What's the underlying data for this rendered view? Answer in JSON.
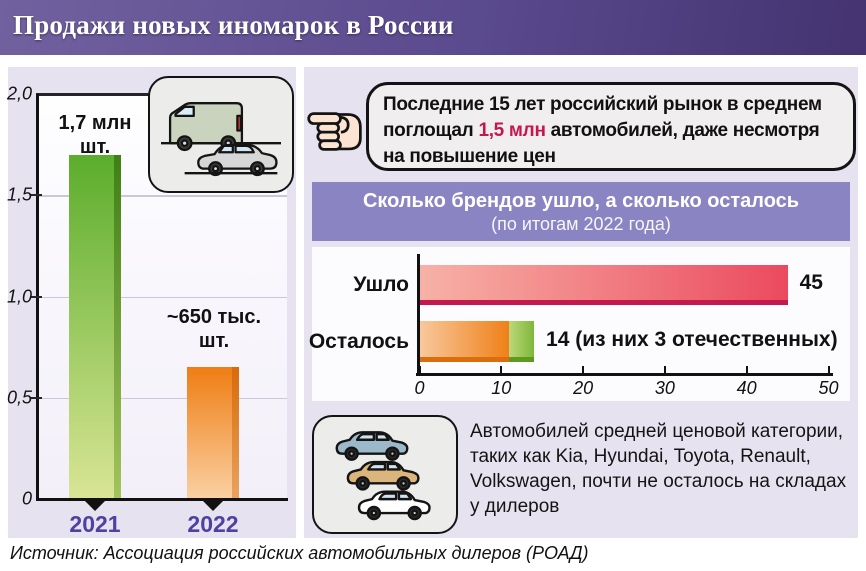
{
  "title": "Продажи новых иномарок в России",
  "source": "Источник: Ассоциация российских автомобильных дилеров (РОАД)",
  "callout": {
    "text_before": "Последние 15 лет российский рынок в среднем поглощал ",
    "highlight": "1,5 млн",
    "text_after": " автомобилей, даже несмотря на повышение цен"
  },
  "note": {
    "text": "Автомобилей средней ценовой категории, таких как Kia, Hyundai, Toyota, Renault, Volkswagen, почти не осталось на складах у дилеров"
  },
  "icons": {
    "pointer": "pointing-hand-left-icon",
    "sales_pictogram": "van-and-car-icon",
    "note_pictogram": "three-cars-icon"
  },
  "colors": {
    "title_gradient_left": "#71619f",
    "title_gradient_right": "#443370",
    "panel_bg": "#e7e2f0",
    "band_bg": "#8b84c3",
    "accent_red_text": "#c5174e",
    "year_label": "#4f41a0",
    "bar_2021_green": "#5bad2c",
    "bar_2022_orange": "#ef7d13",
    "bar_gone_red": "#eb4a5e",
    "bar_left_foreign_orange": "#ef8019",
    "bar_left_domestic_green": "#7fb73c"
  },
  "chart_data": [
    {
      "type": "bar",
      "title": "Продажи новых иномарок в России",
      "categories": [
        "2021",
        "2022"
      ],
      "values": [
        1.7,
        0.65
      ],
      "bar_value_labels": [
        "1,7 млн\nшт.",
        "~650 тыс.\nшт."
      ],
      "unit": "млн шт.",
      "ylim": [
        0,
        2.0
      ],
      "yticks": [
        {
          "v": 2.0,
          "label": "2,0"
        },
        {
          "v": 1.5,
          "label": "1,5"
        },
        {
          "v": 1.0,
          "label": "1,0"
        },
        {
          "v": 0.5,
          "label": "0,5"
        },
        {
          "v": 0.0,
          "label": "0"
        }
      ],
      "grid": "horizontal",
      "legend": "none"
    },
    {
      "type": "bar",
      "orientation": "horizontal",
      "title": "Сколько брендов ушло, а сколько осталось",
      "subtitle": "(по итогам 2022 года)",
      "xlim": [
        0,
        50
      ],
      "xticks": [
        {
          "v": 0,
          "label": "0"
        },
        {
          "v": 10,
          "label": "10"
        },
        {
          "v": 20,
          "label": "20"
        },
        {
          "v": 30,
          "label": "30"
        },
        {
          "v": 40,
          "label": "40"
        },
        {
          "v": 50,
          "label": "50"
        }
      ],
      "rows": [
        {
          "label": "Ушло",
          "total": 45,
          "value_label": "45",
          "segments": [
            {
              "value": 45,
              "color": "#eb4a5e"
            }
          ]
        },
        {
          "label": "Осталось",
          "total": 14,
          "value_label": "14 (из них 3 отечественных)",
          "segments": [
            {
              "value": 11,
              "color": "#ef8019"
            },
            {
              "name": "отечественные",
              "value": 3,
              "color": "#7fb73c"
            }
          ]
        }
      ],
      "legend": "none"
    }
  ]
}
